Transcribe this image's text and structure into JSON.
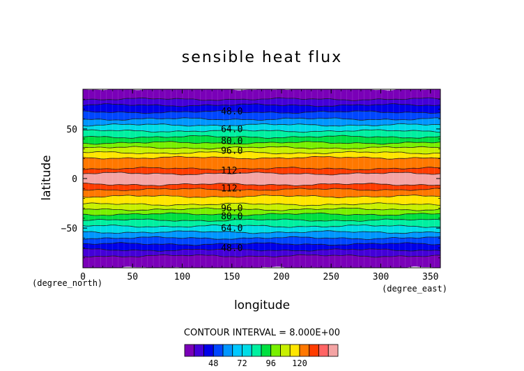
{
  "title": "sensible heat flux",
  "xlabel": "longitude",
  "ylabel": "latitude",
  "x_unit": "(degree_east)",
  "y_unit": "(degree_north)",
  "contour_interval_text": "CONTOUR INTERVAL = 8.000E+00",
  "chart_data": {
    "type": "heatmap",
    "title": "sensible heat flux",
    "xlabel": "longitude",
    "ylabel": "latitude",
    "xlim": [
      0,
      360
    ],
    "ylim": [
      -90,
      90
    ],
    "xticks": [
      0,
      50,
      100,
      150,
      200,
      250,
      300,
      350
    ],
    "yticks": [
      -50,
      0,
      50
    ],
    "contour_interval": 8,
    "contour_levels": [
      40,
      48,
      56,
      64,
      72,
      80,
      88,
      96,
      104,
      112,
      120
    ],
    "contour_labels": [
      {
        "text": "48.0",
        "x": 150,
        "lat": 68
      },
      {
        "text": "64.0",
        "x": 150,
        "lat": 50
      },
      {
        "text": "80.0",
        "x": 150,
        "lat": 38
      },
      {
        "text": "96.0",
        "x": 150,
        "lat": 28
      },
      {
        "text": "112.",
        "x": 150,
        "lat": 8
      },
      {
        "text": "112.",
        "x": 150,
        "lat": -10
      },
      {
        "text": "96.0",
        "x": 150,
        "lat": -30
      },
      {
        "text": "80.0",
        "x": 150,
        "lat": -38
      },
      {
        "text": "64.0",
        "x": 150,
        "lat": -50
      },
      {
        "text": "48.0",
        "x": 150,
        "lat": -70
      }
    ],
    "bands": [
      {
        "lat_from": 90,
        "lat_to": 80,
        "color": "#7a00b8"
      },
      {
        "lat_from": 80,
        "lat_to": 74,
        "color": "#4400d8"
      },
      {
        "lat_from": 74,
        "lat_to": 67,
        "color": "#0000e8"
      },
      {
        "lat_from": 67,
        "lat_to": 60,
        "color": "#0046ff"
      },
      {
        "lat_from": 60,
        "lat_to": 54,
        "color": "#0096ff"
      },
      {
        "lat_from": 54,
        "lat_to": 48,
        "color": "#00dce6"
      },
      {
        "lat_from": 48,
        "lat_to": 42,
        "color": "#00f0a0"
      },
      {
        "lat_from": 42,
        "lat_to": 36,
        "color": "#00e040"
      },
      {
        "lat_from": 36,
        "lat_to": 31,
        "color": "#78f000"
      },
      {
        "lat_from": 31,
        "lat_to": 26,
        "color": "#c8f000"
      },
      {
        "lat_from": 26,
        "lat_to": 21,
        "color": "#ffe600"
      },
      {
        "lat_from": 21,
        "lat_to": 10,
        "color": "#ff7800"
      },
      {
        "lat_from": 10,
        "lat_to": 5,
        "color": "#ff3c00"
      },
      {
        "lat_from": 5,
        "lat_to": -6,
        "color": "#f4a4a4"
      },
      {
        "lat_from": -6,
        "lat_to": -11,
        "color": "#ff3c00"
      },
      {
        "lat_from": -11,
        "lat_to": -18,
        "color": "#ff7800"
      },
      {
        "lat_from": -18,
        "lat_to": -26,
        "color": "#ffe600"
      },
      {
        "lat_from": -26,
        "lat_to": -31,
        "color": "#c8f000"
      },
      {
        "lat_from": -31,
        "lat_to": -36,
        "color": "#78f000"
      },
      {
        "lat_from": -36,
        "lat_to": -42,
        "color": "#00e040"
      },
      {
        "lat_from": -42,
        "lat_to": -48,
        "color": "#00f0a0"
      },
      {
        "lat_from": -48,
        "lat_to": -54,
        "color": "#00dce6"
      },
      {
        "lat_from": -54,
        "lat_to": -60,
        "color": "#0096ff"
      },
      {
        "lat_from": -60,
        "lat_to": -66,
        "color": "#0046ff"
      },
      {
        "lat_from": -66,
        "lat_to": -72,
        "color": "#0000e8"
      },
      {
        "lat_from": -72,
        "lat_to": -78,
        "color": "#4400d8"
      },
      {
        "lat_from": -78,
        "lat_to": -90,
        "color": "#7a00b8"
      }
    ],
    "colorbar": {
      "colors": [
        "#7a00b8",
        "#4400d8",
        "#0000e8",
        "#0046ff",
        "#0096ff",
        "#00c8ff",
        "#00dce6",
        "#00f0a0",
        "#00e040",
        "#78f000",
        "#c8f000",
        "#ffe600",
        "#ff7800",
        "#ff3c00",
        "#ff6464",
        "#f4a4a4"
      ],
      "tick_labels": [
        "48",
        "72",
        "96",
        "120"
      ]
    }
  }
}
